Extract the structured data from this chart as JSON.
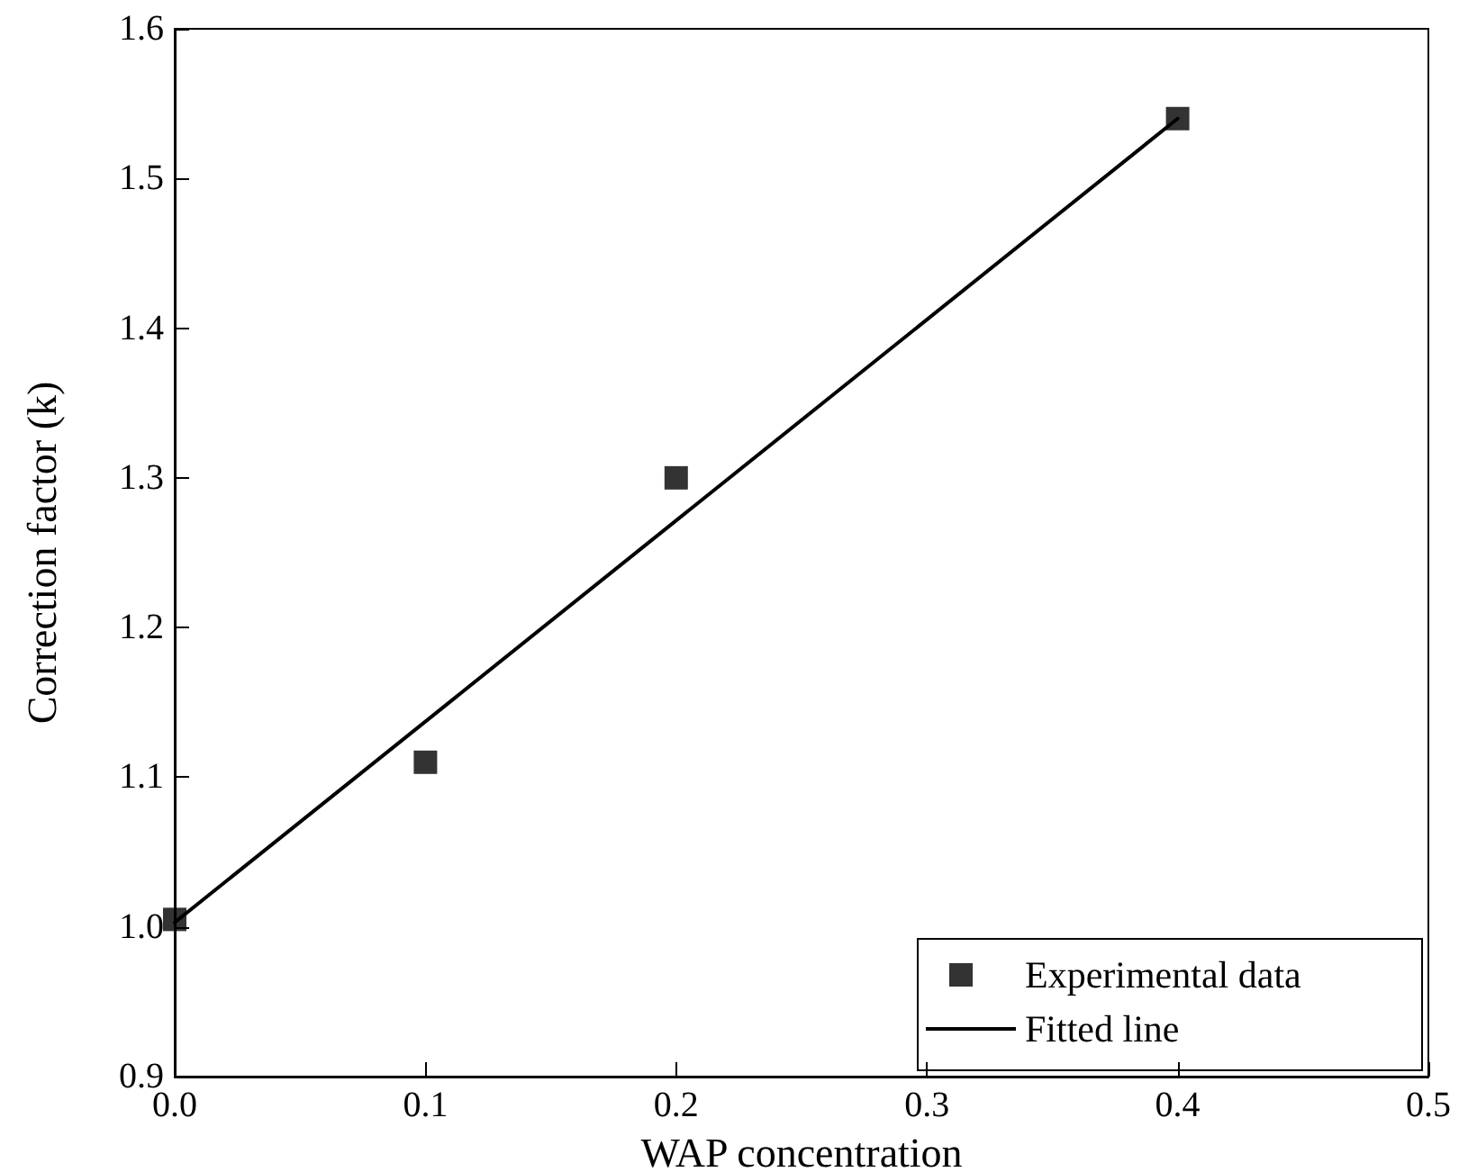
{
  "chart_data": {
    "type": "scatter",
    "xlabel": "WAP concentration",
    "ylabel": "Correction factor (k)",
    "xlim": [
      0,
      0.5
    ],
    "xticks": [
      {
        "value": 0,
        "label": "0.0"
      },
      0.1,
      0.2,
      0.3,
      0.4,
      0.5
    ],
    "ylim": [
      0.9,
      1.6
    ],
    "yticks": [
      0.9,
      {
        "value": 1,
        "label": "1.0"
      },
      1.1,
      1.2,
      1.3,
      1.4,
      1.5,
      1.6
    ],
    "grid": false,
    "legend": "bottom right",
    "series": [
      {
        "name": "Experimental data",
        "marker": "square",
        "color": "#000000",
        "x": [
          0,
          0.1,
          0.2,
          0.4
        ],
        "values": [
          1.005,
          1.11,
          1.3,
          1.54
        ]
      },
      {
        "name": "Fitted line",
        "type": "line",
        "marker": "none",
        "line_style": "solid",
        "color": "#000000",
        "x": [
          0,
          0.4
        ],
        "values": [
          1.003,
          1.54
        ]
      }
    ]
  }
}
